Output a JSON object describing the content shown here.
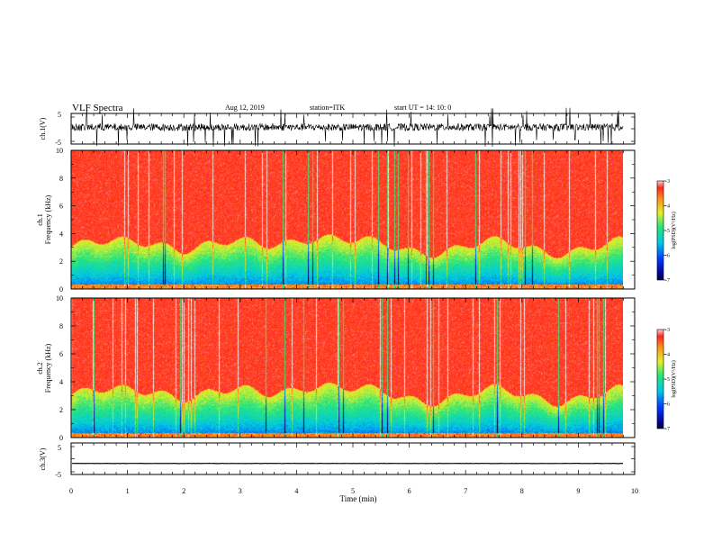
{
  "header": {
    "title": "VLF Spectra",
    "date": "Aug 12, 2019",
    "station": "station=ITK",
    "start": "start UT =   14: 10: 0"
  },
  "chart_data": [
    {
      "id": "waveform-ch1",
      "type": "line",
      "ylabel": "ch.1(V)",
      "ylim": [
        -5,
        5
      ],
      "yticks": [
        "5",
        "-5"
      ],
      "xlim": [
        0,
        10
      ],
      "series": [
        {
          "baseline": 0.5,
          "noise_amplitude": 1.2,
          "spikes": "frequent"
        }
      ]
    },
    {
      "id": "spectrogram-ch1",
      "type": "heatmap",
      "ylabel_line1": "ch.1",
      "ylabel_line2": "Frequency (kHz)",
      "ylim": [
        0,
        10
      ],
      "yticks": [
        "0",
        "2",
        "4",
        "6",
        "8",
        "10"
      ],
      "xlim": [
        0,
        10
      ],
      "data_end_min": 9.8,
      "colorbar": {
        "label": "log(PSD)(V²/Hz)",
        "ticks": [
          "-3",
          "-4",
          "-5",
          "-6",
          "-7"
        ],
        "range": [
          -7,
          -3
        ]
      }
    },
    {
      "id": "spectrogram-ch2",
      "type": "heatmap",
      "ylabel_line1": "ch.2",
      "ylabel_line2": "Frequency (kHz)",
      "ylim": [
        0,
        10
      ],
      "yticks": [
        "0",
        "2",
        "4",
        "6",
        "8",
        "10"
      ],
      "xlim": [
        0,
        10
      ],
      "data_end_min": 9.8,
      "colorbar": {
        "label": "log(PSD)(V²/Hz)",
        "ticks": [
          "-3",
          "-4",
          "-5",
          "-6",
          "-7"
        ],
        "range": [
          -7,
          -3
        ]
      }
    },
    {
      "id": "waveform-ch3",
      "type": "line",
      "ylabel": "ch.3(V)",
      "ylim": [
        -5,
        5
      ],
      "yticks": [
        "5",
        "-5"
      ],
      "xlim": [
        0,
        10
      ],
      "xlabel": "Time (min)",
      "xticks": [
        "0",
        "1",
        "2",
        "3",
        "4",
        "5",
        "6",
        "7",
        "8",
        "9",
        "10"
      ],
      "series": [
        {
          "baseline": -1.5,
          "noise_amplitude": 0.05
        }
      ]
    }
  ],
  "colors": {
    "background": "#ffffff",
    "axis": "#000000",
    "spectrum_high": "#ff2a1e",
    "spectrum_low": "#001060"
  }
}
